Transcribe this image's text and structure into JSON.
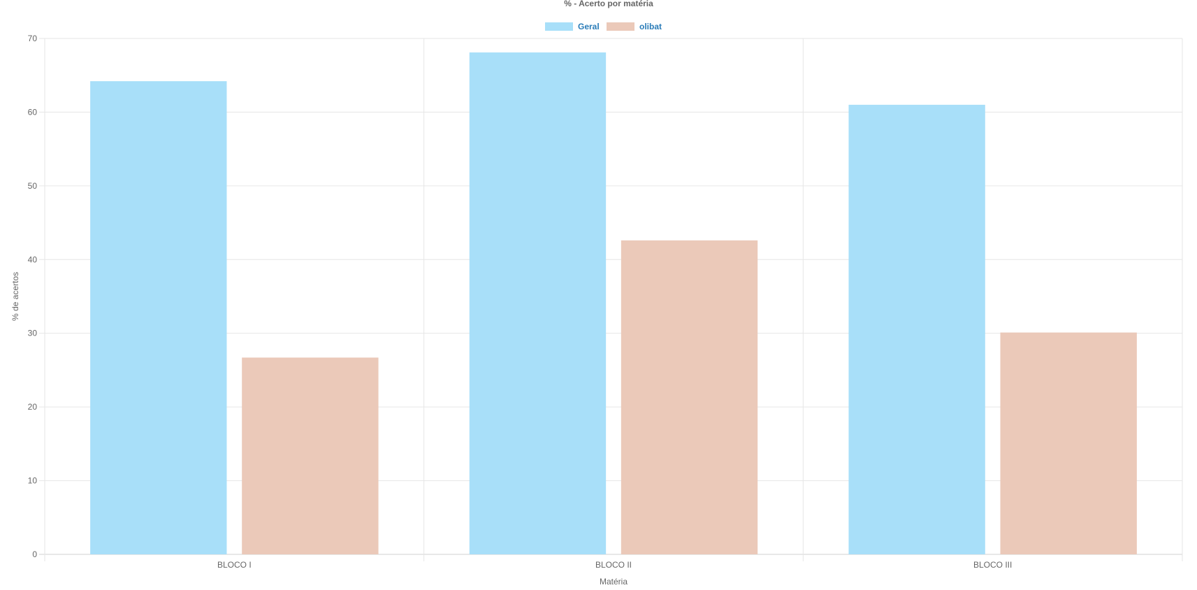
{
  "chart_data": {
    "type": "bar",
    "title": "% - Acerto por matéria",
    "xlabel": "Matéria",
    "ylabel": "% de acertos",
    "categories": [
      "BLOCO I",
      "BLOCO II",
      "BLOCO III"
    ],
    "series": [
      {
        "name": "Geral",
        "values": [
          64.2,
          68.1,
          61.0
        ],
        "color": "#a8dff9"
      },
      {
        "name": "olibat",
        "values": [
          26.7,
          42.6,
          30.1
        ],
        "color": "#ebc9b9"
      }
    ],
    "ylim": [
      0,
      70
    ],
    "yticks": [
      "0",
      "10",
      "20",
      "30",
      "40",
      "50",
      "60",
      "70"
    ],
    "grid": true,
    "legend_position": "top",
    "legend_text_color": "#2a7cb8",
    "axis_text_color": "#666666",
    "grid_color": "#e6e6e6"
  }
}
